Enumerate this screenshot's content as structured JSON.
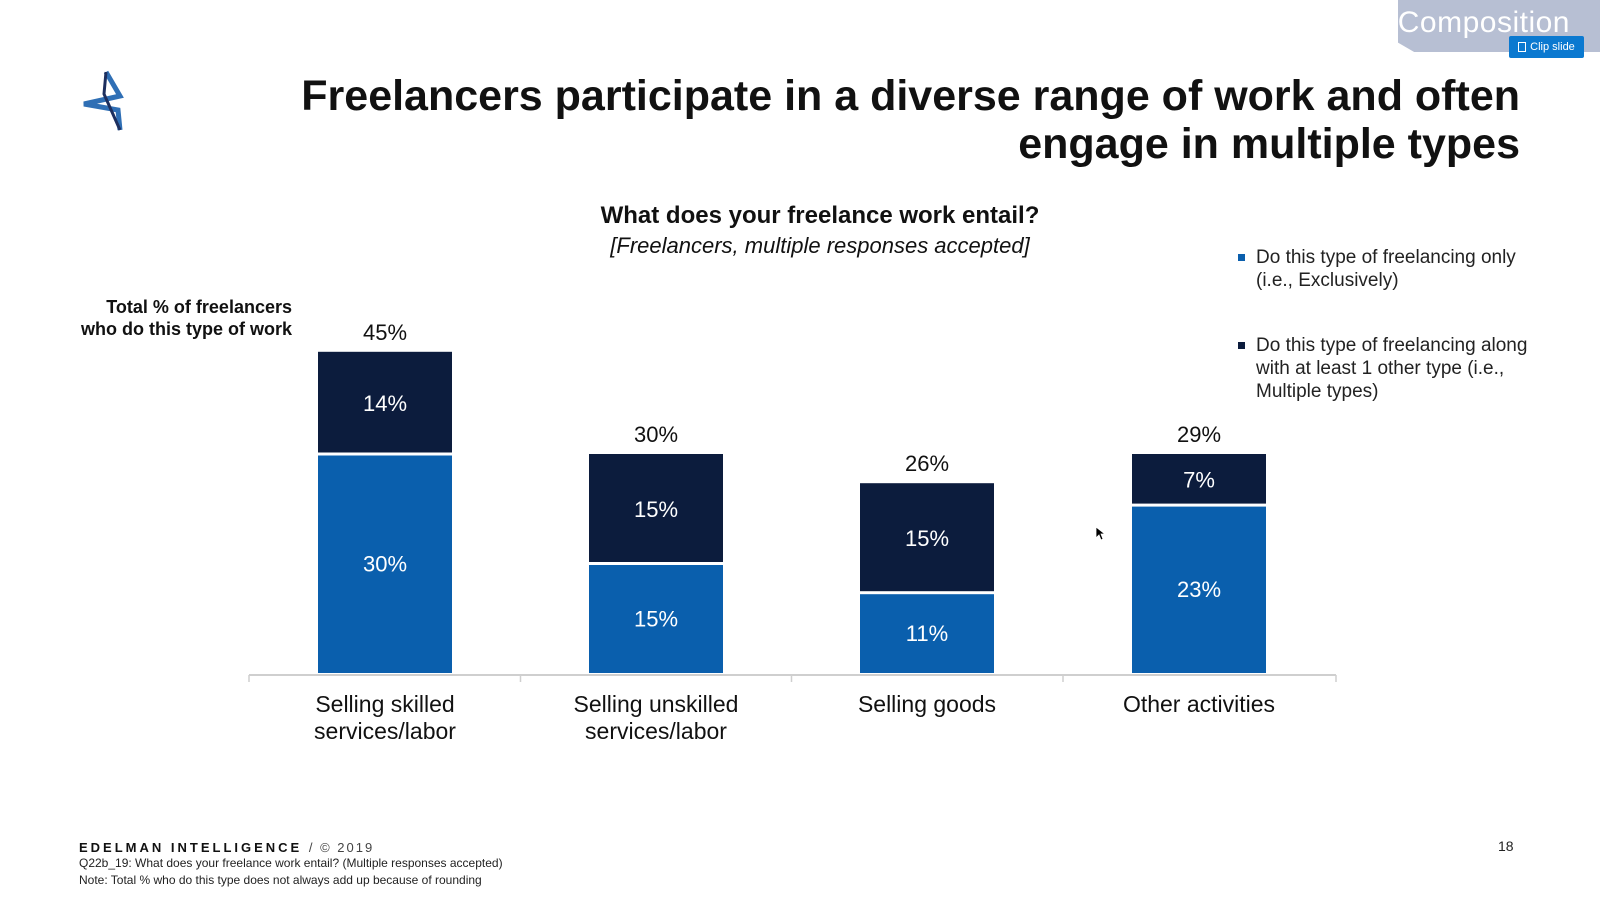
{
  "header": {
    "title": "Freelancers participate in a diverse range of work and often engage in multiple types",
    "composition_label": "Composition",
    "clip_slide_label": "Clip slide"
  },
  "chart": {
    "title": "What does your freelance work entail?",
    "subtitle": "[Freelancers, multiple responses accepted]",
    "total_label": "Total % of freelancers who do this type of work"
  },
  "legend": {
    "exclusive": "Do this type of freelancing only (i.e., Exclusively)",
    "multiple": "Do this type of freelancing along with at least 1 other type (i.e., Multiple types)"
  },
  "footer": {
    "brand": "EDELMAN INTELLIGENCE",
    "year": "/ © 2019",
    "question": "Q22b_19: What does your freelance work entail? (Multiple responses accepted)",
    "note": "Note: Total % who do this type does not always add up because of rounding",
    "page_number": "18"
  },
  "colors": {
    "exclusive": "#0a5fad",
    "multiple": "#0c1c3d",
    "axis": "#cfcfcf",
    "logo_blue": "#2f6fb5",
    "logo_dark": "#1d2f5e"
  },
  "chart_data": {
    "type": "bar",
    "stacked": true,
    "categories": [
      "Selling skilled services/labor",
      "Selling unskilled services/labor",
      "Selling goods",
      "Other activities"
    ],
    "series": [
      {
        "name": "Do this type of freelancing only (i.e., Exclusively)",
        "values": [
          30,
          15,
          11,
          23
        ],
        "labels": [
          "30%",
          "15%",
          "11%",
          "23%"
        ]
      },
      {
        "name": "Do this type of freelancing along with at least 1 other type (i.e., Multiple types)",
        "values": [
          14,
          15,
          15,
          7
        ],
        "labels": [
          "14%",
          "15%",
          "15%",
          "7%"
        ]
      }
    ],
    "totals": [
      45,
      30,
      26,
      29
    ],
    "total_labels": [
      "45%",
      "30%",
      "26%",
      "29%"
    ],
    "title": "What does your freelance work entail?",
    "xlabel": "",
    "ylabel": "",
    "ylim": [
      0,
      50
    ],
    "legend_position": "top-right",
    "grid": false
  }
}
